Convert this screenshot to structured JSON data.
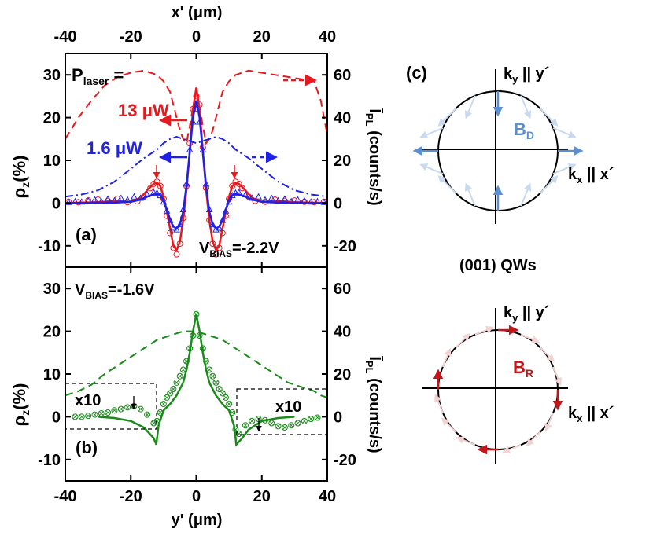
{
  "chart_data": [
    {
      "id": "a",
      "type": "line",
      "panel_label": "(a)",
      "top_axis_label": "x' (μm)",
      "x_ticks": [
        -40,
        -20,
        0,
        20,
        40
      ],
      "xlim": [
        -40,
        40
      ],
      "ylabel_left": "ρz(%)",
      "ylim_left": [
        -15,
        35
      ],
      "y_ticks_left": [
        -10,
        0,
        10,
        20,
        30
      ],
      "ylabel_right": "ĪPL (counts/s)",
      "ylim_right": [
        -30,
        70
      ],
      "y_ticks_right": [
        -20,
        0,
        20,
        40,
        60
      ],
      "annotations": {
        "p_laser": "Plaser =",
        "power_high": "13 μW",
        "power_low": "1.6 μW",
        "vbias": "VBIAS=-2.2V"
      },
      "colors": {
        "high": "#e8191e",
        "low": "#1f22e6"
      },
      "series": [
        {
          "name": "13 μW",
          "kind": "fit",
          "axis": "left",
          "x": [
            -40,
            -30,
            -25,
            -20,
            -17,
            -15,
            -13,
            -12,
            -11,
            -10,
            -9,
            -8,
            -7,
            -6,
            -5,
            -4,
            -3,
            -2,
            -1,
            0,
            1,
            2,
            3,
            4,
            5,
            6,
            7,
            8,
            9,
            10,
            11,
            12,
            13,
            15,
            17,
            20,
            25,
            30,
            40
          ],
          "y": [
            0,
            0.2,
            0.5,
            0.3,
            1.2,
            3,
            4.5,
            4.8,
            4,
            1.5,
            -2,
            -6,
            -10,
            -11,
            -9,
            -4,
            3,
            12,
            22,
            27,
            22,
            12,
            3,
            -4,
            -9,
            -11,
            -10,
            -6,
            -2,
            1.5,
            4,
            4.8,
            4.5,
            3,
            1.2,
            0.3,
            0.5,
            0.2,
            0
          ]
        },
        {
          "name": "13 μW",
          "kind": "data",
          "axis": "left",
          "x": [
            -39,
            -36,
            -33,
            -30,
            -27,
            -24,
            -21,
            -18,
            -16,
            -14,
            -13,
            -12,
            -11,
            -10,
            -9,
            -8,
            -7,
            -6,
            -5,
            -4,
            -3,
            -2,
            -1,
            0,
            1,
            2,
            3,
            4,
            5,
            6,
            7,
            8,
            9,
            10,
            11,
            12,
            13,
            14,
            16,
            18,
            21,
            24,
            27,
            30,
            33,
            36,
            39
          ],
          "y": [
            0.3,
            0.2,
            0.6,
            0.8,
            0.5,
            1,
            0.2,
            0.4,
            1.5,
            3.5,
            4.5,
            5,
            4,
            1,
            -3,
            -7,
            -10.5,
            -12,
            -9.5,
            -3.5,
            4,
            14,
            22,
            25,
            23,
            13,
            3.5,
            -4,
            -9.5,
            -12,
            -10.5,
            -7,
            -3,
            1,
            4,
            5,
            4.5,
            3.5,
            1.5,
            0.5,
            0.3,
            0.8,
            0.5,
            0.6,
            0.3,
            0.2,
            0.3
          ]
        },
        {
          "name": "1.6 μW",
          "kind": "fit",
          "axis": "left",
          "x": [
            -40,
            -30,
            -25,
            -20,
            -17,
            -15,
            -13,
            -12,
            -11,
            -10,
            -9,
            -8,
            -7,
            -6,
            -5,
            -4,
            -3,
            -2,
            -1,
            0,
            1,
            2,
            3,
            4,
            5,
            6,
            7,
            8,
            9,
            10,
            11,
            12,
            13,
            15,
            17,
            20,
            25,
            30,
            40
          ],
          "y": [
            0,
            0,
            0.1,
            0.3,
            0.8,
            1.5,
            2,
            2.2,
            1.8,
            0.5,
            -1.5,
            -4,
            -5.5,
            -6,
            -5,
            -2,
            4,
            12,
            20,
            24,
            20,
            12,
            4,
            -2,
            -5,
            -6,
            -5.5,
            -4,
            -1.5,
            0.5,
            1.8,
            2.2,
            2,
            1.5,
            0.8,
            0.3,
            0.1,
            0,
            0
          ]
        },
        {
          "name": "1.6 μW",
          "kind": "data",
          "axis": "left",
          "x": [
            -39,
            -37,
            -35,
            -33,
            -31,
            -29,
            -27,
            -25,
            -23,
            -21,
            -19,
            -17,
            -15,
            -13,
            -12,
            -11,
            -10,
            -9,
            -8,
            -7,
            -6,
            -5,
            -4,
            -3,
            -2,
            -1,
            0,
            1,
            2,
            3,
            4,
            5,
            6,
            7,
            8,
            9,
            10,
            11,
            12,
            13,
            15,
            17,
            19,
            21,
            23,
            25,
            27,
            29,
            31,
            33,
            35,
            37,
            39
          ],
          "y": [
            0.2,
            0.4,
            0.3,
            0.6,
            0.8,
            0.4,
            1,
            0.6,
            1.2,
            0.8,
            1.5,
            1.2,
            2,
            2.5,
            2.4,
            1.8,
            0.3,
            -1.8,
            -4,
            -5.8,
            -6.2,
            -5,
            -1.5,
            4.5,
            12.5,
            19,
            22,
            19,
            12.5,
            4.5,
            -1.5,
            -5,
            -6.2,
            -5.8,
            -4,
            -1.8,
            0.3,
            1.8,
            2.4,
            2.5,
            2,
            1.2,
            1.5,
            0.8,
            1.2,
            0.6,
            1,
            0.4,
            0.8,
            0.6,
            0.3,
            0.4,
            0.2
          ]
        },
        {
          "name": "13 μW",
          "kind": "intensity",
          "axis": "right",
          "x": [
            -40,
            -36,
            -32,
            -28,
            -24,
            -20,
            -16,
            -12,
            -10,
            -8,
            -6,
            -5,
            -4,
            -3,
            -2,
            -1,
            0,
            1,
            2,
            3,
            4,
            5,
            6,
            8,
            10,
            12,
            16,
            20,
            24,
            28,
            32,
            36,
            38,
            40
          ],
          "y": [
            30,
            40,
            48,
            55,
            59,
            61,
            62,
            60,
            57,
            52,
            40,
            34,
            30,
            28,
            36,
            45,
            52,
            45,
            36,
            28,
            30,
            34,
            40,
            52,
            57,
            60,
            62,
            61,
            60,
            59,
            58,
            57,
            48,
            32
          ]
        },
        {
          "name": "1.6 μW",
          "kind": "intensity",
          "axis": "right",
          "x": [
            -40,
            -35,
            -30,
            -25,
            -20,
            -16,
            -12,
            -10,
            -8,
            -6,
            -4,
            -2,
            0,
            2,
            4,
            6,
            8,
            10,
            12,
            16,
            20,
            25,
            30,
            35,
            40
          ],
          "y": [
            3,
            4,
            6,
            10,
            16,
            21,
            25,
            28,
            30,
            31,
            30,
            29,
            28,
            29,
            30,
            31,
            30,
            28,
            25,
            21,
            16,
            10,
            6,
            4,
            3
          ]
        }
      ]
    },
    {
      "id": "b",
      "type": "line",
      "panel_label": "(b)",
      "xlabel": "y' (μm)",
      "x_ticks": [
        -40,
        -20,
        0,
        20,
        40
      ],
      "xlim": [
        -40,
        40
      ],
      "ylabel_left": "ρz(%)",
      "ylim_left": [
        -15,
        35
      ],
      "y_ticks_left": [
        -10,
        0,
        10,
        20,
        30
      ],
      "ylabel_right": "ĪPL (counts/s)",
      "ylim_right": [
        -30,
        70
      ],
      "y_ticks_right": [
        -20,
        0,
        20,
        40,
        60
      ],
      "annotations": {
        "vbias": "VBIAS=-1.6V",
        "magnify_left": "x10",
        "magnify_right": "x10"
      },
      "colors": {
        "main": "#1a8a1a"
      },
      "series": [
        {
          "name": "fit",
          "kind": "fit",
          "axis": "left",
          "x": [
            -30,
            -25,
            -20,
            -16,
            -13,
            -12.2,
            -12,
            -11.5,
            -10,
            -8,
            -6,
            -4,
            -3,
            -2,
            -1,
            0,
            1,
            2,
            3,
            4,
            6,
            8,
            10,
            11.5,
            12,
            12.2,
            14,
            16,
            20,
            25,
            30
          ],
          "y": [
            0,
            -0.3,
            -1,
            -2.5,
            -5,
            -6.5,
            -5,
            -2,
            1.5,
            3,
            5,
            8,
            11,
            15,
            20,
            24,
            20,
            15,
            11,
            8,
            5,
            3,
            1.5,
            -2,
            -5,
            -6.5,
            -5,
            -3,
            -1,
            -0.3,
            0
          ]
        },
        {
          "name": "data",
          "kind": "data",
          "axis": "left",
          "x": [
            -37,
            -35,
            -33,
            -31,
            -29,
            -27,
            -25,
            -23,
            -21,
            -19,
            -17,
            -15,
            -13,
            -12,
            -11,
            -10,
            -9,
            -8,
            -7,
            -6,
            -5,
            -4,
            -3,
            -2,
            -1,
            0,
            1,
            2,
            3,
            4,
            5,
            6,
            7,
            8,
            9,
            10,
            11,
            12,
            13,
            15,
            17,
            19,
            21,
            23,
            25,
            27,
            29,
            31,
            33,
            35,
            37
          ],
          "y": [
            0,
            0,
            0.2,
            0.5,
            0.8,
            1,
            1.5,
            1.8,
            2.2,
            2.5,
            1.8,
            0.5,
            -1.5,
            -1,
            1,
            3,
            4.5,
            5.5,
            6.5,
            8,
            9.5,
            11,
            13,
            16,
            19,
            24,
            19,
            16,
            13,
            11,
            9.5,
            8,
            6.5,
            5.5,
            4.5,
            3,
            1,
            -3,
            -4,
            -2,
            -1,
            -0.5,
            -0.8,
            -1.5,
            -2.2,
            -2.5,
            -2,
            -1.5,
            -1,
            -0.5,
            -0.2
          ]
        },
        {
          "name": "intensity",
          "kind": "intensity",
          "axis": "right",
          "x": [
            -40,
            -36,
            -32,
            -28,
            -24,
            -20,
            -16,
            -12,
            -8,
            -4,
            0,
            4,
            8,
            12,
            16,
            20,
            24,
            28,
            32,
            36,
            38,
            40
          ],
          "y": [
            10,
            12,
            15,
            20,
            24,
            28,
            32,
            36,
            38,
            40,
            40,
            38,
            36,
            32,
            28,
            24,
            20,
            16,
            14,
            12,
            10,
            9
          ]
        }
      ]
    }
  ],
  "diagrams": {
    "c": {
      "panel_label": "(c)",
      "ky_label": "ky || y´",
      "kx_label": "kx || x´",
      "field_label": "BD",
      "color": "#5b8fd0",
      "color_light": "#c9d9ee"
    },
    "middle_label": "(001) QWs",
    "r": {
      "ky_label": "ky || y´",
      "kx_label": "kx || x´",
      "field_label": "BR",
      "color": "#c0171b",
      "color_light": "#f2d3d3"
    }
  }
}
